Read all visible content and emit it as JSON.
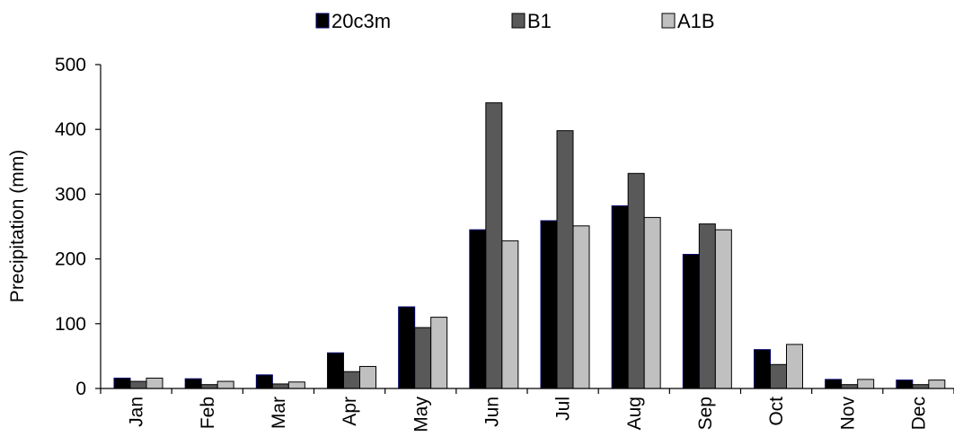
{
  "chart_data": {
    "type": "bar",
    "title": "",
    "xlabel": "",
    "ylabel": "Precipitation  (mm)",
    "ylim": [
      0,
      500
    ],
    "yticks": [
      "0",
      "100",
      "200",
      "300",
      "400",
      "500"
    ],
    "grid": false,
    "legend_position": "top",
    "categories": [
      "Jan",
      "Feb",
      "Mar",
      "Apr",
      "May",
      "Jun",
      "Jul",
      "Aug",
      "Sep",
      "Oct",
      "Nov",
      "Dec"
    ],
    "series": [
      {
        "name": "20c3m",
        "color": "#000000",
        "edge": "#00006e",
        "values": [
          16,
          15,
          21,
          55,
          126,
          245,
          259,
          282,
          207,
          60,
          14,
          13
        ]
      },
      {
        "name": "B1",
        "color": "#595959",
        "edge": "#000000",
        "values": [
          11,
          6,
          7,
          26,
          94,
          441,
          398,
          332,
          254,
          37,
          6,
          6
        ]
      },
      {
        "name": "A1B",
        "color": "#c0c0c0",
        "edge": "#000000",
        "values": [
          16,
          11,
          10,
          34,
          110,
          228,
          251,
          264,
          245,
          68,
          14,
          13
        ]
      }
    ]
  }
}
